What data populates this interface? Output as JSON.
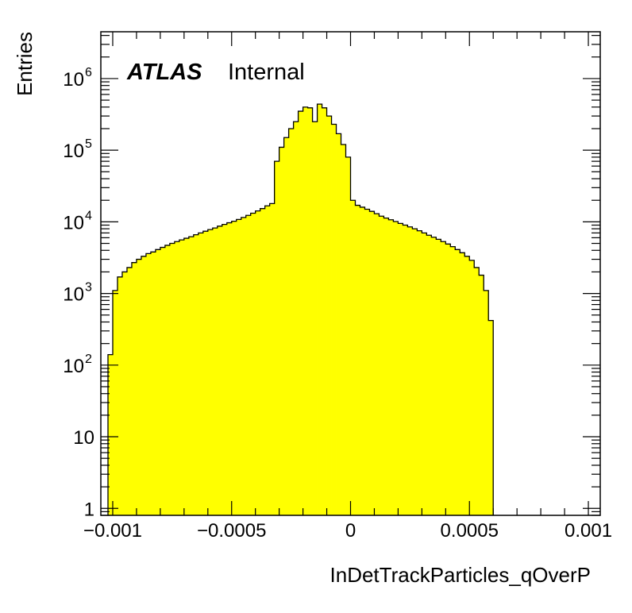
{
  "chart_data": {
    "type": "histogram",
    "xlabel": "InDetTrackParticles_qOverP",
    "ylabel": "Entries",
    "label_bold": "ATLAS",
    "label_text": "Internal",
    "xlim": [
      -0.00105,
      0.00105
    ],
    "ylim": [
      0.8,
      4500000
    ],
    "yscale": "log",
    "fill_color": "#ffff00",
    "line_color": "#000000",
    "bin_width": 2e-05,
    "x_start": -0.00102,
    "values": [
      140,
      1100,
      1700,
      2000,
      2300,
      2700,
      3000,
      3300,
      3600,
      3800,
      4100,
      4400,
      4700,
      5000,
      5300,
      5600,
      5900,
      6200,
      6600,
      7000,
      7400,
      7800,
      8200,
      8700,
      9200,
      9700,
      10200,
      10800,
      11500,
      12300,
      13200,
      14200,
      15300,
      16700,
      18000,
      70000,
      110000,
      150000,
      200000,
      250000,
      350000,
      400000,
      390000,
      250000,
      440000,
      390000,
      300000,
      230000,
      170000,
      120000,
      80000,
      20000,
      17000,
      16000,
      15000,
      14000,
      13000,
      12000,
      11300,
      10700,
      10100,
      9500,
      9000,
      8500,
      8000,
      7500,
      7000,
      6500,
      6100,
      5700,
      5300,
      4900,
      4500,
      4100,
      3700,
      3300,
      2900,
      2300,
      1800,
      1100,
      420
    ],
    "x_ticks": [
      {
        "v": -0.001,
        "label": "−0.001"
      },
      {
        "v": -0.0005,
        "label": "−0.0005"
      },
      {
        "v": 0,
        "label": "0"
      },
      {
        "v": 0.0005,
        "label": "0.0005"
      },
      {
        "v": 0.001,
        "label": "0.001"
      }
    ],
    "y_ticks": [
      {
        "v": 1,
        "label": "1",
        "exp": ""
      },
      {
        "v": 10,
        "label": "10",
        "exp": ""
      },
      {
        "v": 100,
        "label": "10",
        "exp": "2"
      },
      {
        "v": 1000,
        "label": "10",
        "exp": "3"
      },
      {
        "v": 10000,
        "label": "10",
        "exp": "4"
      },
      {
        "v": 100000,
        "label": "10",
        "exp": "5"
      },
      {
        "v": 1000000,
        "label": "10",
        "exp": "6"
      }
    ]
  }
}
